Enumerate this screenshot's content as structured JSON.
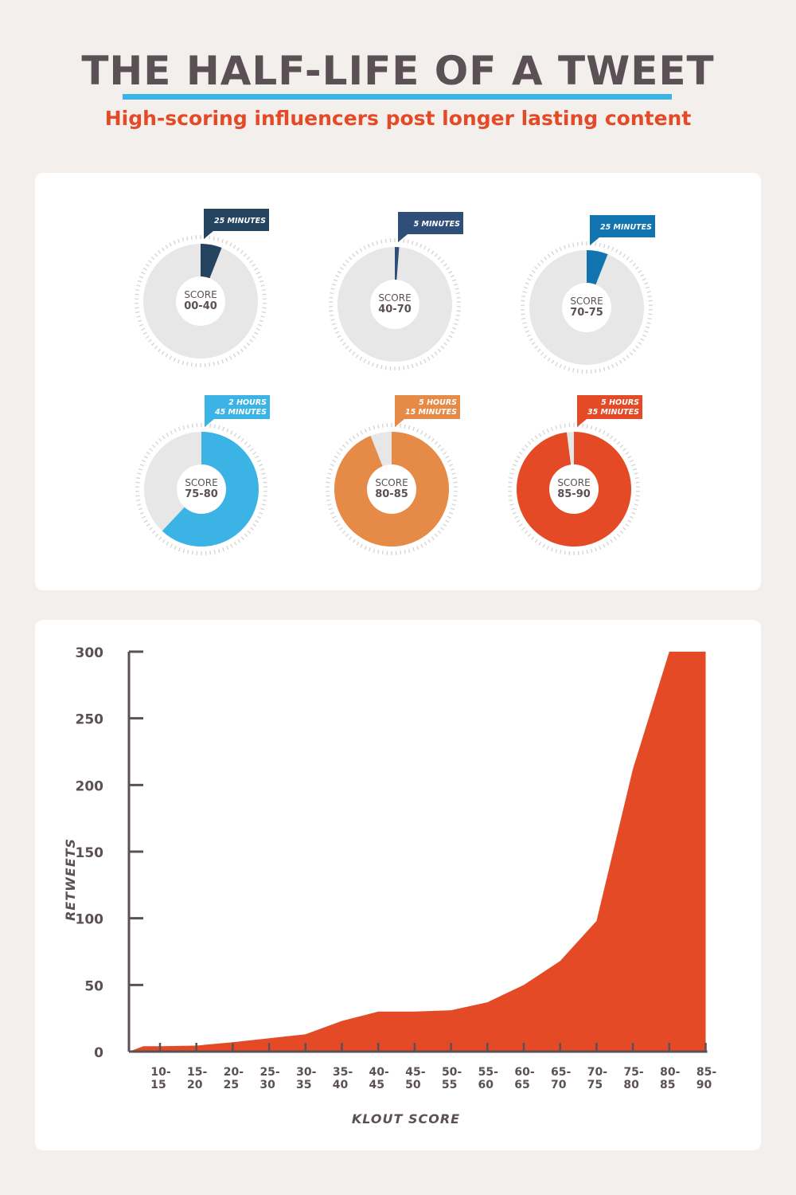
{
  "header": {
    "title": "THE HALF-LIFE OF A TWEET",
    "subtitle": "High-scoring influencers post longer lasting content"
  },
  "colors": {
    "title": "#5a5055",
    "accent_blue": "#3bb4e5",
    "accent_red": "#e44a26",
    "donut_base": "#e6e7e6"
  },
  "chart_data": [
    {
      "type": "pie",
      "variant": "donut",
      "items": [
        {
          "score_label": "SCORE",
          "score_range": "00-40",
          "duration": [
            "25 MINUTES"
          ],
          "fraction": 0.06,
          "color": "#24445f"
        },
        {
          "score_label": "SCORE",
          "score_range": "40-70",
          "duration": [
            "5 MINUTES"
          ],
          "fraction": 0.012,
          "color": "#2f4f79"
        },
        {
          "score_label": "SCORE",
          "score_range": "70-75",
          "duration": [
            "25 MINUTES"
          ],
          "fraction": 0.06,
          "color": "#1173b0"
        },
        {
          "score_label": "SCORE",
          "score_range": "75-80",
          "duration": [
            "2 HOURS",
            "45 MINUTES"
          ],
          "fraction": 0.62,
          "color": "#3bb4e5"
        },
        {
          "score_label": "SCORE",
          "score_range": "80-85",
          "duration": [
            "5 HOURS",
            "15 MINUTES"
          ],
          "fraction": 0.94,
          "color": "#e68a47"
        },
        {
          "score_label": "SCORE",
          "score_range": "85-90",
          "duration": [
            "5 HOURS",
            "35 MINUTES"
          ],
          "fraction": 0.98,
          "color": "#e44a26"
        }
      ]
    },
    {
      "type": "area",
      "xlabel": "KLOUT SCORE",
      "ylabel": "RETWEETS",
      "ylim": [
        0,
        300
      ],
      "yticks": [
        0,
        50,
        100,
        150,
        200,
        250,
        300
      ],
      "categories": [
        "10-15",
        "15-20",
        "20-25",
        "25-30",
        "30-35",
        "35-40",
        "40-45",
        "45-50",
        "50-55",
        "55-60",
        "60-65",
        "65-70",
        "70-75",
        "75-80",
        "80-85",
        "85-90"
      ],
      "values": [
        4,
        4.5,
        7,
        10,
        13,
        23,
        30,
        30,
        31,
        37,
        50,
        68,
        98,
        212,
        300,
        300
      ],
      "color": "#e44a26",
      "grid": false
    }
  ]
}
